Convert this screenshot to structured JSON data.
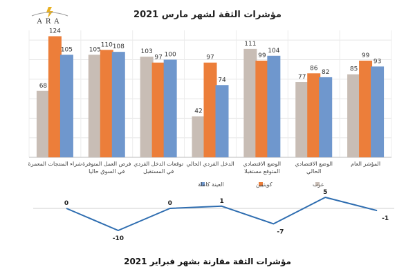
{
  "header": {
    "logo_text": "ARA",
    "title": "مؤشرات الثقة لشهر مارس 2021",
    "bottom_title": "مؤشرات الثقة مقارنة بشهر فبراير 2021"
  },
  "chart_data": [
    {
      "type": "bar",
      "title": "مؤشرات الثقة لشهر مارس 2021",
      "categories": [
        [
          "شراء المنتجات المعمرة"
        ],
        [
          "فرص العمل المتوفرة",
          "في السوق حاليا"
        ],
        [
          "توقعات الدخل الفردي",
          "في المستقبل"
        ],
        [
          "الدخل الفردي الحالي"
        ],
        [
          "الوضع الاقتصادي",
          "المتوقع مستقبلا"
        ],
        [
          "الوضع الاقتصادي",
          "الحالي"
        ],
        [
          "المؤشر العام"
        ]
      ],
      "series": [
        {
          "name": "عرب",
          "color": "#c8bdb5",
          "values": [
            68,
            105,
            103,
            42,
            111,
            77,
            85
          ]
        },
        {
          "name": "كويتيين",
          "color": "#ec7e3a",
          "values": [
            124,
            110,
            97,
            97,
            99,
            86,
            99
          ]
        },
        {
          "name": "العينة كاملة",
          "color": "#6f97cd",
          "values": [
            105,
            108,
            100,
            74,
            104,
            82,
            93
          ]
        }
      ],
      "grid": true,
      "legend": "bottom-center"
    },
    {
      "type": "line",
      "title": "مؤشرات الثقة مقارنة بشهر فبراير 2021",
      "values": [
        0,
        -10,
        0,
        1,
        -7,
        5,
        -1
      ],
      "color": "#2e6db0"
    }
  ]
}
